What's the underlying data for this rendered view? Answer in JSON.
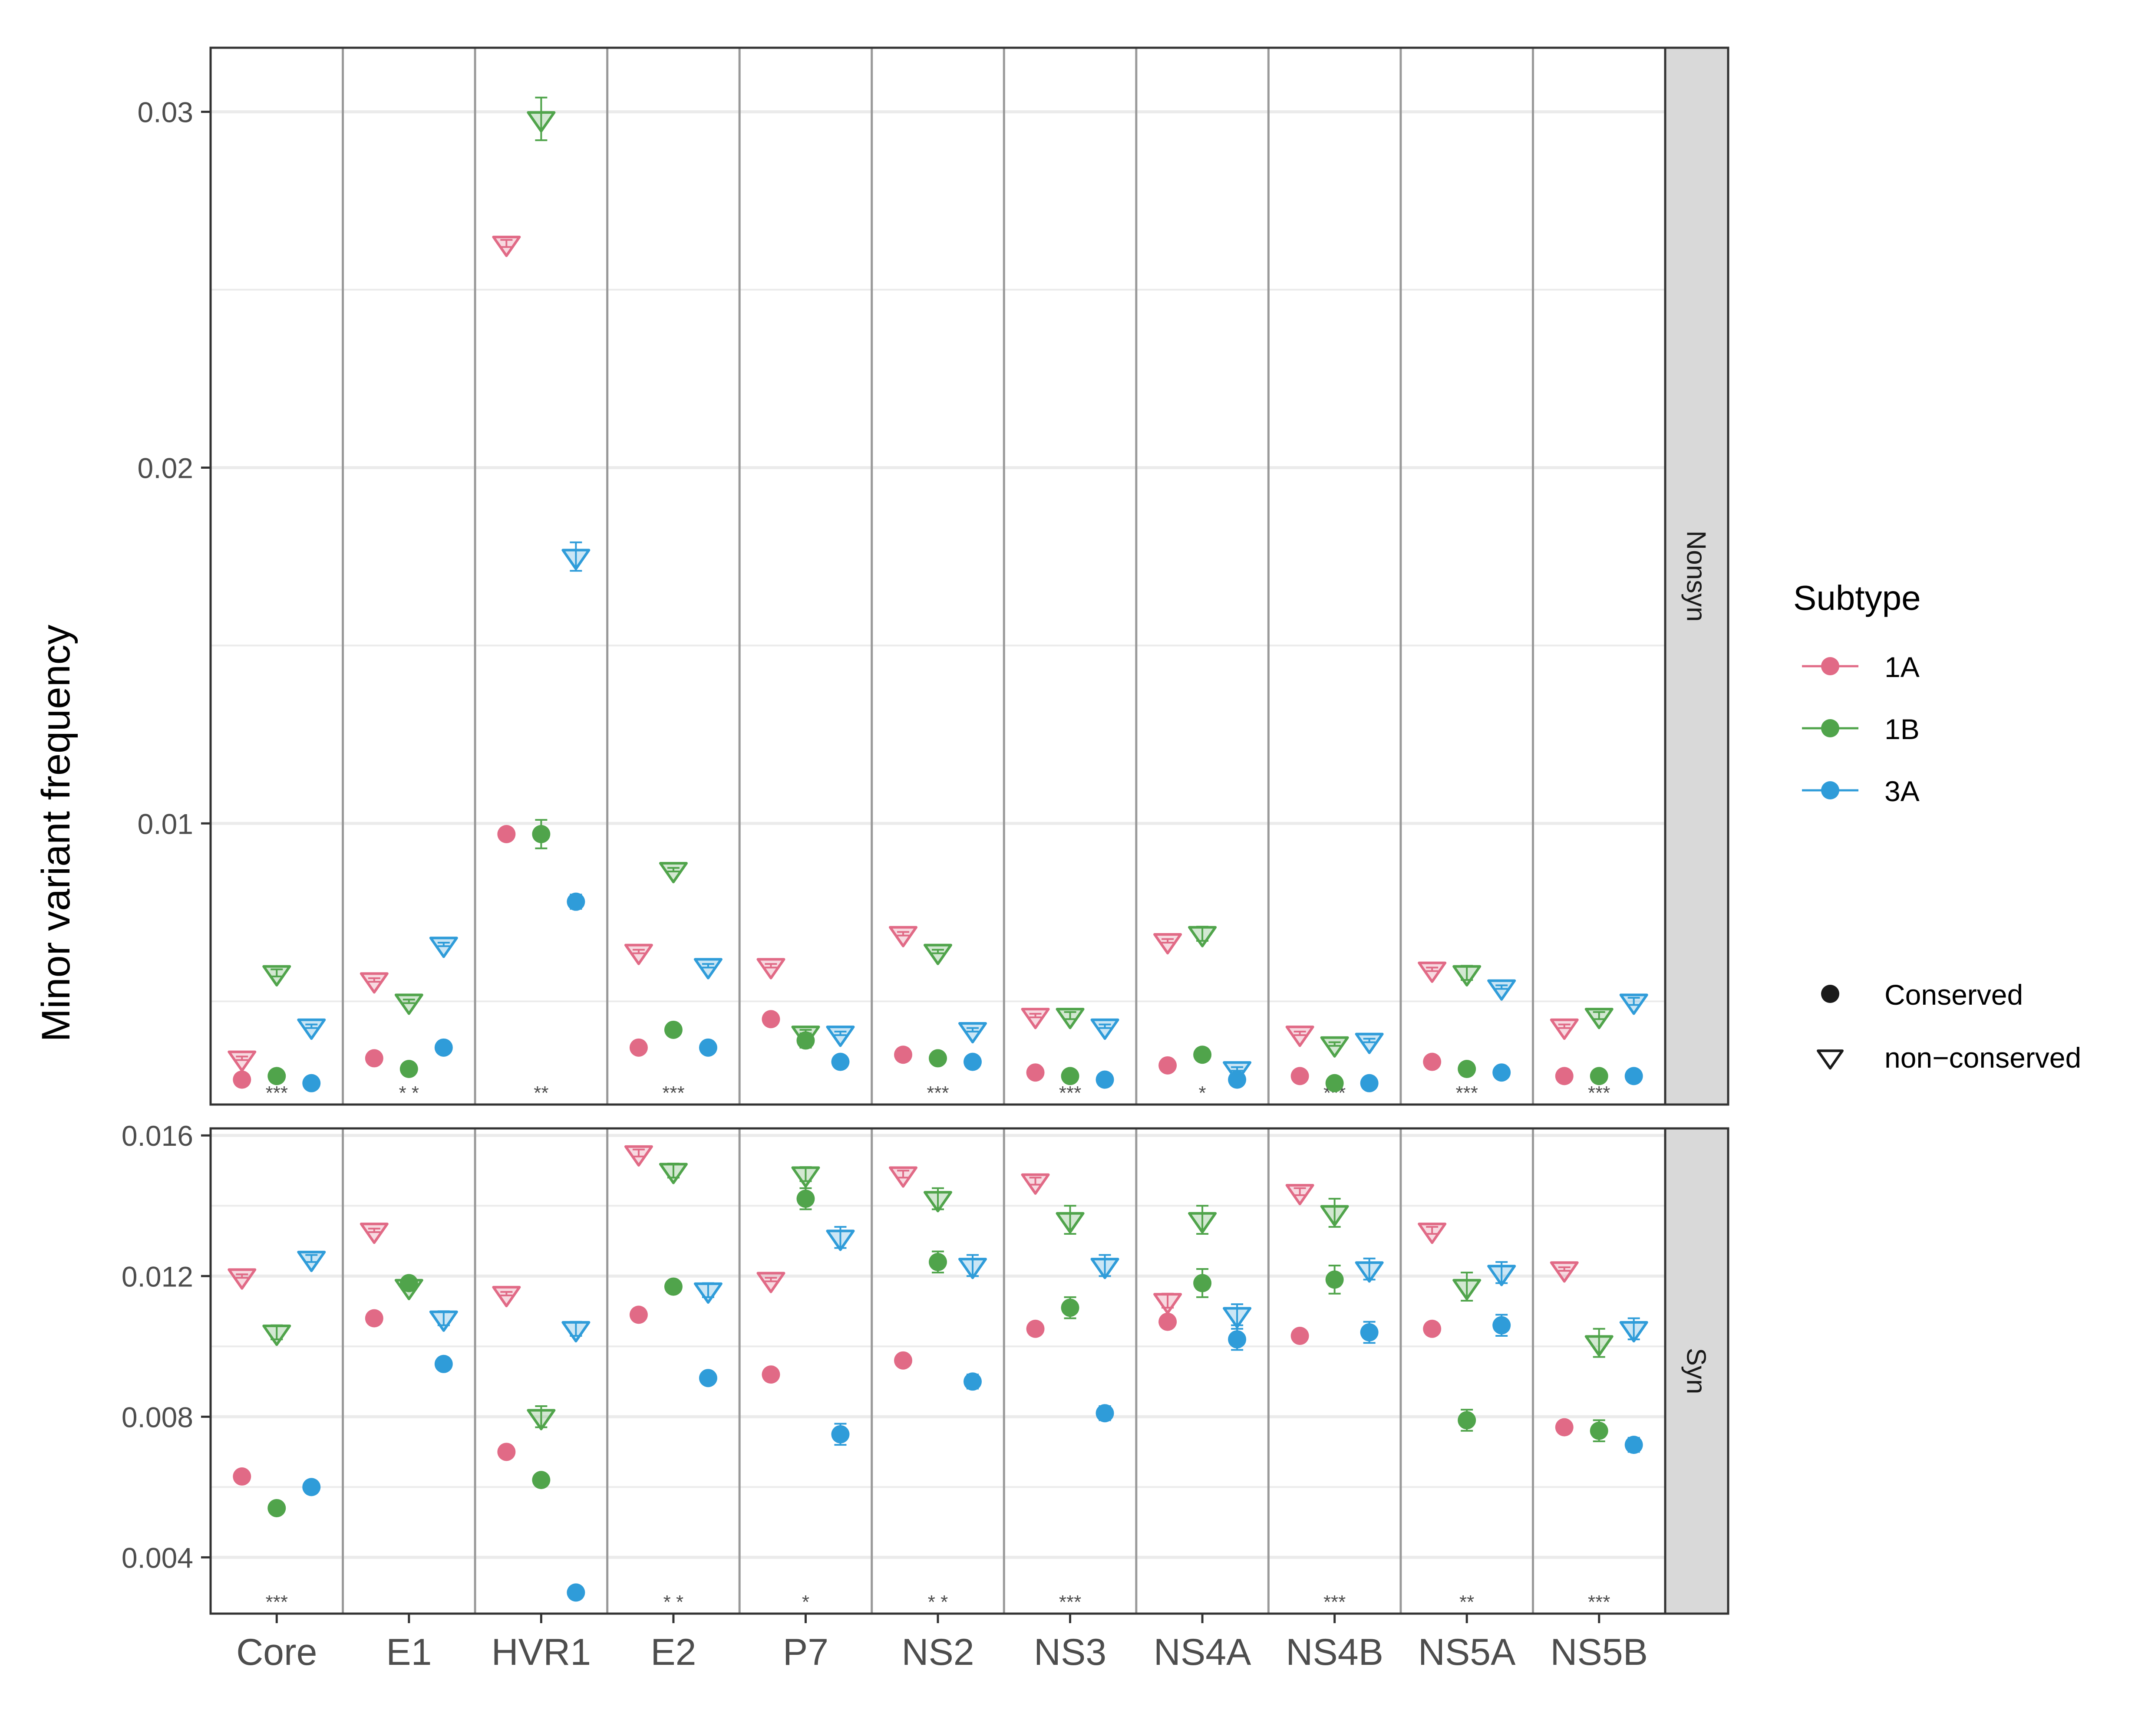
{
  "colors": {
    "1A": "#E16A86",
    "1B": "#50A44B",
    "3A": "#2F9CD9"
  },
  "chart_data": {
    "type": "scatter",
    "ylabel": "Minor variant frequency",
    "categories": [
      "Core",
      "E1",
      "HVR1",
      "E2",
      "P7",
      "NS2",
      "NS3",
      "NS4A",
      "NS4B",
      "NS5A",
      "NS5B"
    ],
    "legend": {
      "title": "Subtype",
      "subtypes": [
        "1A",
        "1B",
        "3A"
      ],
      "shapes": [
        "Conserved",
        "non−conserved"
      ],
      "position": "right"
    },
    "panels": [
      {
        "strip": "Nonsyn",
        "ylim": [
          0.0021,
          0.0318
        ],
        "ticks": [
          0.01,
          0.02,
          0.03
        ],
        "tick_labels": [
          "0.01",
          "0.02",
          "0.03"
        ],
        "minor_ticks": [
          0.005,
          0.015,
          0.025
        ],
        "significance": [
          "***",
          "* *",
          "**",
          "***",
          "",
          "***",
          "***",
          "*",
          "***",
          "***",
          "***"
        ],
        "series": [
          {
            "subtype": "1A",
            "shape": "Conserved",
            "values": [
              0.0028,
              0.0034,
              0.0097,
              0.0037,
              0.0045,
              0.0035,
              0.003,
              0.0032,
              0.0029,
              0.0033,
              0.0029
            ],
            "err": [
              5e-05,
              5e-05,
              0.0001,
              5e-05,
              5e-05,
              5e-05,
              5e-05,
              5e-05,
              5e-05,
              5e-05,
              5e-05
            ]
          },
          {
            "subtype": "1B",
            "shape": "Conserved",
            "values": [
              0.0029,
              0.0031,
              0.0097,
              0.0042,
              0.0039,
              0.0034,
              0.0029,
              0.0035,
              0.0027,
              0.0031,
              0.0029
            ],
            "err": [
              5e-05,
              5e-05,
              0.0004,
              5e-05,
              0.0002,
              5e-05,
              5e-05,
              5e-05,
              5e-05,
              5e-05,
              5e-05
            ]
          },
          {
            "subtype": "3A",
            "shape": "Conserved",
            "values": [
              0.0027,
              0.0037,
              0.0078,
              0.0037,
              0.0033,
              0.0033,
              0.0028,
              0.0028,
              0.0027,
              0.003,
              0.0029
            ],
            "err": [
              5e-05,
              5e-05,
              0.0002,
              5e-05,
              5e-05,
              5e-05,
              5e-05,
              5e-05,
              5e-05,
              5e-05,
              5e-05
            ]
          },
          {
            "subtype": "1A",
            "shape": "non−conserved",
            "values": [
              0.0034,
              0.0056,
              0.0263,
              0.0064,
              0.006,
              0.0069,
              0.0046,
              0.0067,
              0.0041,
              0.0059,
              0.0043
            ],
            "err": [
              5e-05,
              5e-05,
              0.0001,
              5e-05,
              5e-05,
              5e-05,
              5e-05,
              5e-05,
              5e-05,
              5e-05,
              5e-05
            ]
          },
          {
            "subtype": "1B",
            "shape": "non−conserved",
            "values": [
              0.0058,
              0.005,
              0.0298,
              0.0087,
              0.0041,
              0.0064,
              0.0046,
              0.0069,
              0.0038,
              0.0058,
              0.0046
            ],
            "err": [
              0.0001,
              5e-05,
              0.0006,
              5e-05,
              0.0001,
              5e-05,
              0.0001,
              0.0002,
              5e-05,
              0.0002,
              0.0001
            ]
          },
          {
            "subtype": "3A",
            "shape": "non−conserved",
            "values": [
              0.0043,
              0.0066,
              0.0175,
              0.006,
              0.0041,
              0.0042,
              0.0043,
              0.0031,
              0.0039,
              0.0054,
              0.005
            ],
            "err": [
              5e-05,
              5e-05,
              0.0004,
              5e-05,
              5e-05,
              5e-05,
              5e-05,
              5e-05,
              5e-05,
              5e-05,
              0.0001
            ]
          }
        ]
      },
      {
        "strip": "Syn",
        "ylim": [
          0.0024,
          0.0162
        ],
        "ticks": [
          0.004,
          0.008,
          0.012,
          0.016
        ],
        "tick_labels": [
          "0.004",
          "0.008",
          "0.012",
          "0.016"
        ],
        "minor_ticks": [
          0.006,
          0.01,
          0.014
        ],
        "significance": [
          "***",
          "",
          "",
          "* *",
          "*",
          "* *",
          "***",
          "",
          "***",
          "**",
          "***"
        ],
        "series": [
          {
            "subtype": "1A",
            "shape": "Conserved",
            "values": [
              0.0063,
              0.0108,
              0.007,
              0.0109,
              0.0092,
              0.0096,
              0.0105,
              0.0107,
              0.0103,
              0.0105,
              0.0077
            ],
            "err": [
              5e-05,
              5e-05,
              5e-05,
              5e-05,
              5e-05,
              5e-05,
              5e-05,
              5e-05,
              5e-05,
              5e-05,
              5e-05
            ]
          },
          {
            "subtype": "1B",
            "shape": "Conserved",
            "values": [
              0.0054,
              0.0118,
              0.0062,
              0.0117,
              0.0142,
              0.0124,
              0.0111,
              0.0118,
              0.0119,
              0.0079,
              0.0076
            ],
            "err": [
              5e-05,
              0.0001,
              5e-05,
              0.0001,
              0.0003,
              0.0003,
              0.0003,
              0.0004,
              0.0004,
              0.0003,
              0.0003
            ]
          },
          {
            "subtype": "3A",
            "shape": "Conserved",
            "values": [
              0.006,
              0.0095,
              0.003,
              0.0091,
              0.0075,
              0.009,
              0.0081,
              0.0102,
              0.0104,
              0.0106,
              0.0072
            ],
            "err": [
              5e-05,
              5e-05,
              5e-05,
              0.0001,
              0.0003,
              0.0002,
              0.0002,
              0.0003,
              0.0003,
              0.0003,
              0.0002
            ]
          },
          {
            "subtype": "1A",
            "shape": "non−conserved",
            "values": [
              0.012,
              0.0133,
              0.0115,
              0.0155,
              0.0119,
              0.0149,
              0.0147,
              0.0113,
              0.0144,
              0.0133,
              0.0122
            ],
            "err": [
              5e-05,
              5e-05,
              5e-05,
              0.0001,
              5e-05,
              0.0001,
              0.0001,
              0.0002,
              0.0001,
              0.0001,
              5e-05
            ]
          },
          {
            "subtype": "1B",
            "shape": "non−conserved",
            "values": [
              0.0104,
              0.0117,
              0.008,
              0.015,
              0.0149,
              0.0142,
              0.0136,
              0.0136,
              0.0138,
              0.0117,
              0.0101
            ],
            "err": [
              0.0002,
              0.0001,
              0.0003,
              0.0002,
              0.0002,
              0.0003,
              0.0004,
              0.0004,
              0.0004,
              0.0004,
              0.0004
            ]
          },
          {
            "subtype": "3A",
            "shape": "non−conserved",
            "values": [
              0.0125,
              0.0108,
              0.0105,
              0.0116,
              0.0131,
              0.0123,
              0.0123,
              0.0109,
              0.0122,
              0.0121,
              0.0105
            ],
            "err": [
              0.0001,
              0.0002,
              0.0002,
              0.0002,
              0.0003,
              0.0003,
              0.0003,
              0.0003,
              0.0003,
              0.0003,
              0.0003
            ]
          }
        ]
      }
    ]
  }
}
